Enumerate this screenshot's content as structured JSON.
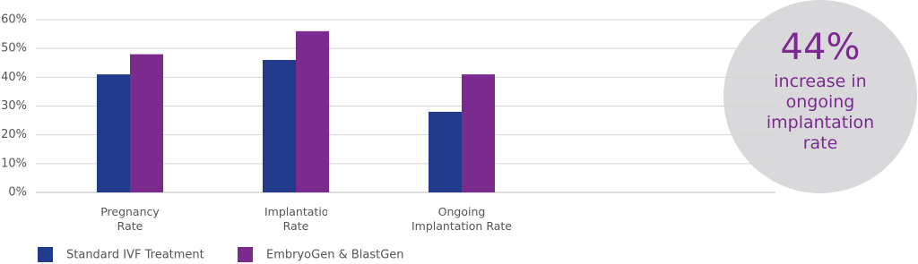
{
  "chart_data": {
    "type": "bar",
    "categories": [
      "Pregnancy Rate",
      "Implantation Rate",
      "Ongoing Implantation Rate"
    ],
    "series": [
      {
        "name": "Standard IVF Treatment",
        "color": "#213a8b",
        "values": [
          41,
          46,
          28
        ]
      },
      {
        "name": "EmbryoGen & BlastGen",
        "color": "#7b2a8f",
        "values": [
          48,
          56,
          41
        ]
      }
    ],
    "ylim": [
      0,
      60
    ],
    "yticks": [
      {
        "value": 0,
        "label": "0%"
      },
      {
        "value": 10,
        "label": "10%"
      },
      {
        "value": 20,
        "label": "20%"
      },
      {
        "value": 30,
        "label": "30%"
      },
      {
        "value": 40,
        "label": "40%"
      },
      {
        "value": 50,
        "label": "50%"
      },
      {
        "value": 60,
        "label": "60%"
      }
    ],
    "grid": true,
    "legend": "bottom-left",
    "annotation": {
      "headline": "44%",
      "text": "increase in ongoing implantation rate"
    }
  }
}
